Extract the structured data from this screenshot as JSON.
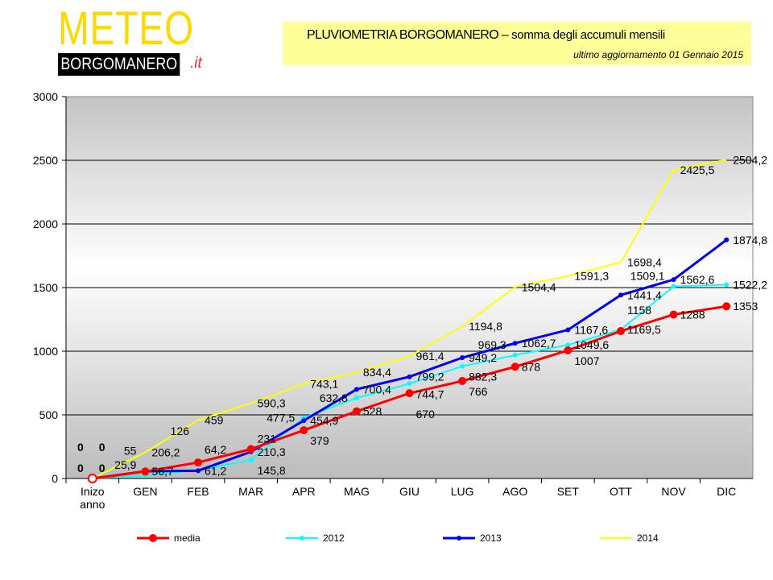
{
  "header": {
    "logo_meteo": "METEO",
    "logo_borgomanero": "BORGOMANERO",
    "logo_tld": ".it",
    "title": "PLUVIOMETRIA BORGOMANERO –",
    "title_sub": "somma degli accumuli mensili",
    "subtitle": "ultimo aggiornamento  01 Gennaio  2015"
  },
  "chart_data": {
    "type": "line",
    "title": "PLUVIOMETRIA BORGOMANERO – somma degli accumuli mensili",
    "categories": [
      "Inizo\nanno",
      "GEN",
      "FEB",
      "MAR",
      "APR",
      "MAG",
      "GIU",
      "LUG",
      "AGO",
      "SET",
      "OTT",
      "NOV",
      "DIC"
    ],
    "ylim": [
      0,
      3000
    ],
    "yticks": [
      0,
      500,
      1000,
      1500,
      2000,
      2500,
      3000
    ],
    "grid": true,
    "legend": "bottom",
    "series": [
      {
        "name": "media",
        "color": "#ff0000",
        "values": [
          0,
          55,
          126,
          231,
          379,
          528,
          670,
          766,
          878,
          1007,
          1158,
          1288,
          1353
        ]
      },
      {
        "name": "2012",
        "color": "#00ffff",
        "values": [
          0,
          25.9,
          64.2,
          145.8,
          477.5,
          632.8,
          744.7,
          882.3,
          969.3,
          1049.6,
          1169.5,
          1509.1,
          1522.2
        ]
      },
      {
        "name": "2013",
        "color": "#0000ee",
        "values": [
          0,
          56.7,
          61.2,
          210.3,
          454.9,
          700.4,
          799.2,
          949.2,
          1062.7,
          1167.6,
          1441.4,
          1562.6,
          1874.8
        ]
      },
      {
        "name": "2014",
        "color": "#ffff00",
        "values": [
          0,
          206.2,
          459,
          590.3,
          743.1,
          834.4,
          961.4,
          1194.8,
          1504.4,
          1591.3,
          1698.4,
          2425.5,
          2504.2
        ]
      }
    ]
  }
}
